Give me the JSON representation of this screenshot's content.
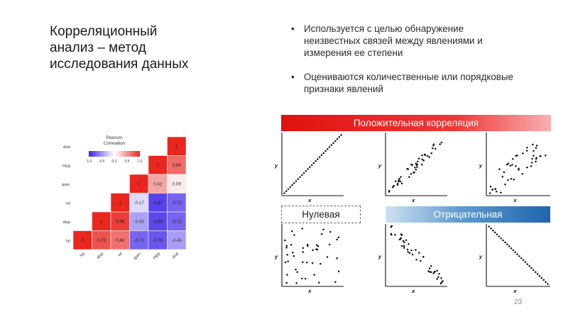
{
  "title": {
    "lines": [
      "Корреляционный",
      "анализ – метод",
      "исследования данных"
    ]
  },
  "bullets": [
    {
      "lines": [
        "Используется с целью обнаружение",
        "неизвестных связей между явлениями и",
        "измерения ее степени"
      ]
    },
    {
      "lines": [
        "Оцениваются количественные или порядковые",
        "признаки явлений"
      ]
    }
  ],
  "banners": {
    "positive": "Положительная корреляция",
    "null": "Нулевая",
    "negative": "Отрицательная"
  },
  "page_number": "23",
  "colors": {
    "positive_red": "#e01010",
    "negative_blue": "#1f65ae"
  },
  "chart_data": [
    {
      "type": "heatmap",
      "legend_title": [
        "Pearson",
        "Correlation"
      ],
      "legend_ticks": [
        "-1.0",
        "-0.5",
        "0.0",
        "0.5",
        "1.0"
      ],
      "row_labels": [
        "drat",
        "mpg",
        "qsec",
        "wt",
        "disp",
        "hp"
      ],
      "column_labels": [
        "hp",
        "disp",
        "wt",
        "qsec",
        "mpg",
        "drat"
      ],
      "values": [
        [
          null,
          null,
          null,
          null,
          null,
          1
        ],
        [
          null,
          null,
          null,
          null,
          1,
          0.68
        ],
        [
          null,
          null,
          null,
          1,
          0.42,
          0.09
        ],
        [
          null,
          null,
          1,
          -0.17,
          -0.87,
          -0.71
        ],
        [
          null,
          1,
          0.89,
          -0.43,
          -0.85,
          -0.71
        ],
        [
          1,
          0.79,
          0.66,
          -0.71,
          -0.78,
          -0.45
        ]
      ],
      "value_labels": [
        [
          null,
          null,
          null,
          null,
          null,
          "1"
        ],
        [
          null,
          null,
          null,
          null,
          "1",
          "0.68"
        ],
        [
          null,
          null,
          null,
          "1",
          "0.42",
          "0.09"
        ],
        [
          null,
          null,
          "1",
          "-0.17",
          "-0.87",
          "-0.71"
        ],
        [
          null,
          "1",
          "0.89",
          "-0.43",
          "-0.85",
          "-0.71"
        ],
        [
          "1",
          "0.79",
          "0.66",
          "-0.71",
          "-0.78",
          "-0.45"
        ]
      ],
      "color_range": [
        -1,
        1
      ]
    },
    {
      "type": "scatter",
      "panels": [
        {
          "name": "perfect-positive",
          "xlabel": "x",
          "ylabel": "y"
        },
        {
          "name": "strong-positive",
          "xlabel": "x",
          "ylabel": "y"
        },
        {
          "name": "weak-positive",
          "xlabel": "x",
          "ylabel": "y"
        },
        {
          "name": "no-correlation",
          "xlabel": "x",
          "ylabel": "y"
        },
        {
          "name": "strong-negative",
          "xlabel": "x",
          "ylabel": "y"
        },
        {
          "name": "perfect-negative",
          "xlabel": "x",
          "ylabel": "y"
        }
      ]
    }
  ]
}
